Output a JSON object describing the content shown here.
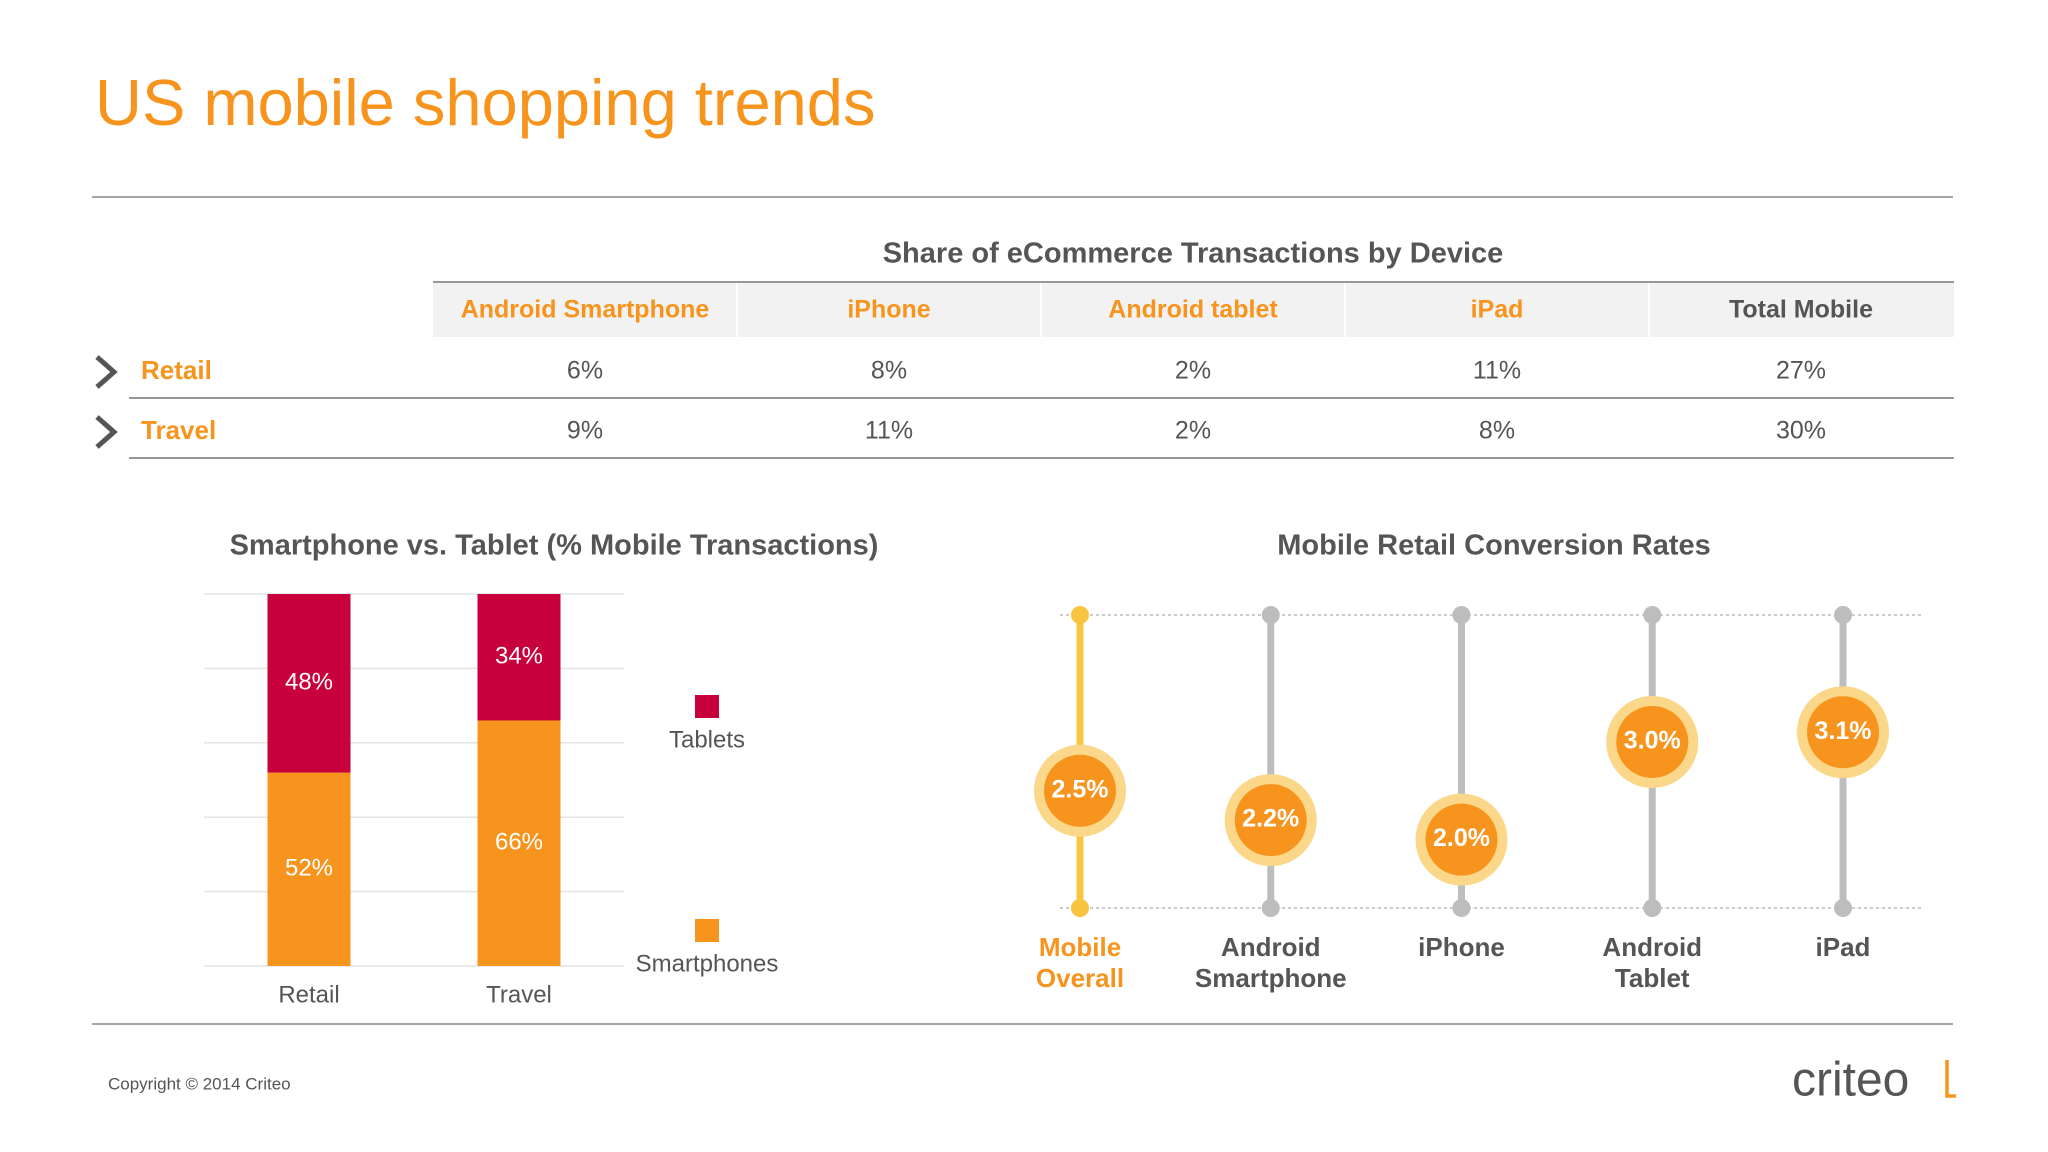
{
  "title": "US mobile shopping trends",
  "table": {
    "title": "Share of eCommerce Transactions by Device",
    "columns": [
      "Android Smartphone",
      "iPhone",
      "Android tablet",
      "iPad",
      "Total Mobile"
    ],
    "column_colors": [
      "#f7941d",
      "#f7941d",
      "#f7941d",
      "#f7941d",
      "#555555"
    ],
    "rows": [
      {
        "label": "Retail",
        "cells": [
          "6%",
          "8%",
          "2%",
          "11%",
          "27%"
        ]
      },
      {
        "label": "Travel",
        "cells": [
          "9%",
          "11%",
          "2%",
          "8%",
          "30%"
        ]
      }
    ]
  },
  "chart_data": [
    {
      "type": "stacked_bar",
      "title": "Smartphone vs. Tablet (% Mobile Transactions)",
      "categories": [
        "Retail",
        "Travel"
      ],
      "series": [
        {
          "name": "Smartphones",
          "color": "#f7941d",
          "values": [
            52,
            66
          ],
          "value_labels": [
            "52%",
            "66%"
          ]
        },
        {
          "name": "Tablets",
          "color": "#c8003c",
          "values": [
            48,
            34
          ],
          "value_labels": [
            "48%",
            "34%"
          ]
        }
      ],
      "ylim": [
        0,
        100
      ],
      "yticks": [
        0,
        20,
        40,
        60,
        80,
        100
      ],
      "grid": true,
      "legend": "right"
    },
    {
      "type": "lollipop",
      "title": "Mobile Retail Conversion Rates",
      "categories": [
        [
          "Mobile",
          "Overall"
        ],
        [
          "Android",
          "Smartphone"
        ],
        [
          "iPhone"
        ],
        [
          "Android",
          "Tablet"
        ],
        [
          "iPad"
        ]
      ],
      "values": [
        2.5,
        2.2,
        2.0,
        3.0,
        3.1
      ],
      "value_labels": [
        "2.5%",
        "2.2%",
        "2.0%",
        "3.0%",
        "3.1%"
      ],
      "ylim": [
        1.3,
        4.3
      ],
      "colors": [
        "#f9c440",
        "#bdbdbd",
        "#bdbdbd",
        "#bdbdbd",
        "#bdbdbd"
      ],
      "label_colors": [
        "#f7941d",
        "#555555",
        "#555555",
        "#555555",
        "#555555"
      ],
      "color": "#f7941d"
    }
  ],
  "footer": {
    "copyright": "Copyright © 2014 Criteo",
    "logo": "criteo"
  }
}
